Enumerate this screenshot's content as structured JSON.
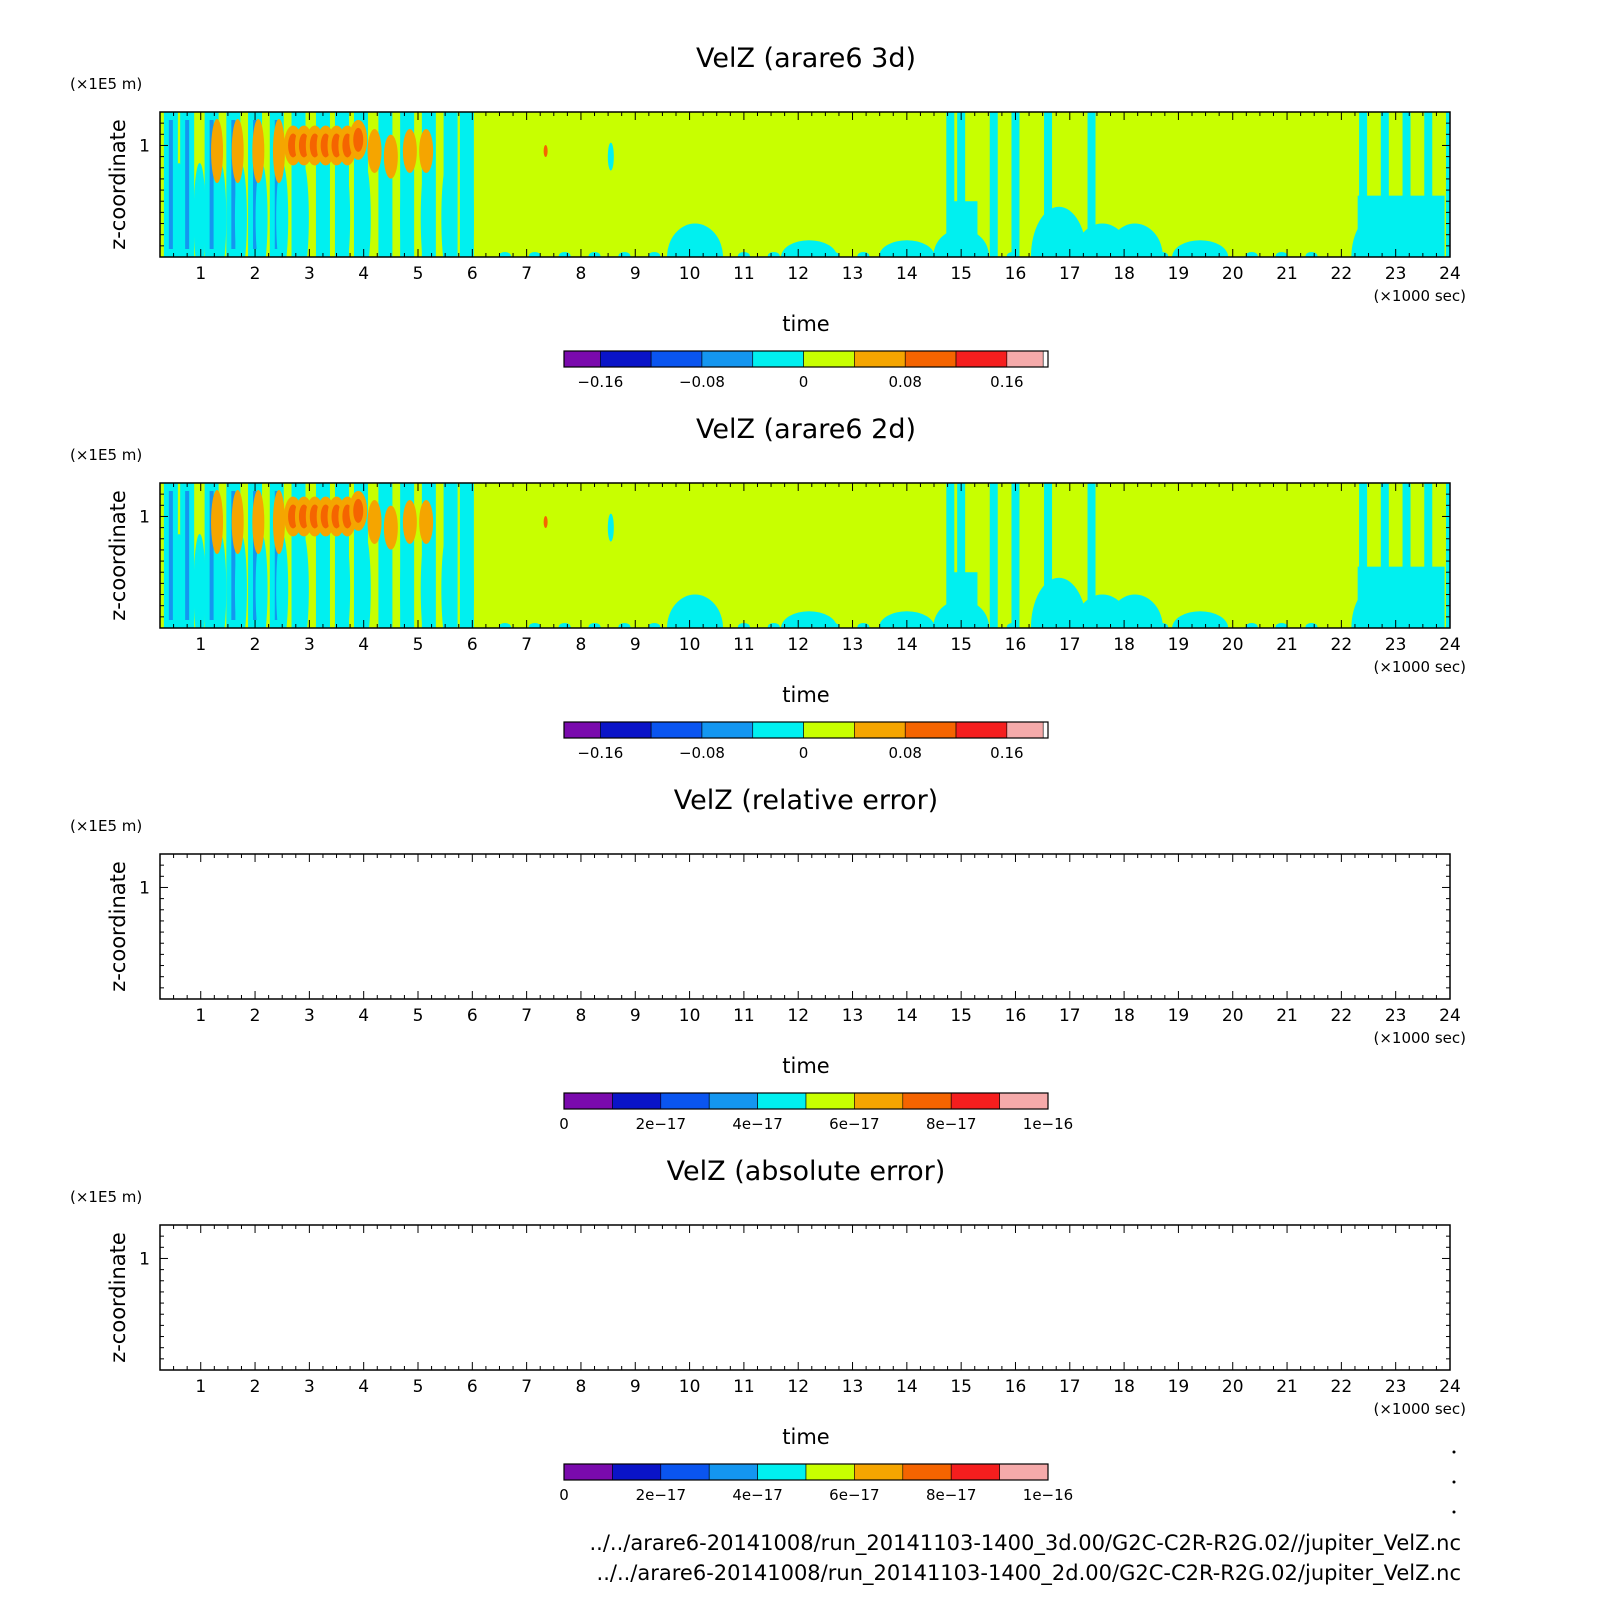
{
  "colors": {
    "palette": [
      "#7a0aad",
      "#0a14c8",
      "#0a55f0",
      "#1496f0",
      "#00f0f0",
      "#c8ff00",
      "#f5a500",
      "#f56400",
      "#f51e1e",
      "#f5aaaa"
    ],
    "background_field": "#c8ff00",
    "negative_field": "#00f0f0",
    "positive_field": "#f5a500",
    "strong_positive_field": "#f56400"
  },
  "footer": {
    "line1": "../../arare6-20141008/run_20141103-1400_3d.00/G2C-C2R-R2G.02//jupiter_VelZ.nc",
    "line2": "../../arare6-20141008/run_20141103-1400_2d.00/G2C-C2R-R2G.02/jupiter_VelZ.nc"
  },
  "chart_data": [
    {
      "type": "heatmap",
      "title": "VelZ (arare6 3d)",
      "xlabel": "time",
      "x_unit": "(×1000 sec)",
      "ylabel": "z-coordinate",
      "y_unit": "(×1E5 m)",
      "xlim": [
        0.25,
        24
      ],
      "ylim": [
        0,
        1.3
      ],
      "x_ticks": [
        "1",
        "2",
        "3",
        "4",
        "5",
        "6",
        "7",
        "8",
        "9",
        "10",
        "11",
        "12",
        "13",
        "14",
        "15",
        "16",
        "17",
        "18",
        "19",
        "20",
        "21",
        "22",
        "23",
        "24"
      ],
      "y_ticks": [
        "1"
      ],
      "colorbar": {
        "levels": [
          -0.2,
          -0.16,
          -0.12,
          -0.08,
          -0.04,
          0,
          0.04,
          0.08,
          0.12,
          0.16,
          0.2
        ],
        "labels": [
          "-0.16",
          "-0.08",
          "0",
          "0.08",
          "0.16"
        ],
        "label_values": [
          -0.16,
          -0.08,
          0,
          0.08,
          0.16
        ]
      },
      "filled": true,
      "field": {
        "blue_columns": [
          0.45,
          0.75,
          1.2,
          1.6,
          2.0,
          2.4,
          2.8,
          3.25,
          3.6,
          3.95,
          4.4,
          4.8,
          5.2,
          5.6,
          5.9
        ],
        "red_blobs": [
          [
            2.7,
            1.0
          ],
          [
            2.9,
            1.0
          ],
          [
            3.1,
            1.0
          ],
          [
            3.3,
            1.0
          ],
          [
            3.5,
            1.0
          ],
          [
            3.7,
            1.0
          ],
          [
            3.9,
            1.05
          ]
        ],
        "orange_blobs": [
          [
            4.2,
            0.95
          ],
          [
            4.5,
            0.9
          ],
          [
            4.85,
            0.95
          ],
          [
            5.15,
            0.95
          ]
        ],
        "cyan_patches": [
          [
            10.1,
            0.3
          ],
          [
            12.2,
            0.15
          ],
          [
            14.0,
            0.15
          ],
          [
            15.0,
            0.25
          ],
          [
            16.8,
            0.45
          ],
          [
            17.6,
            0.3
          ],
          [
            18.2,
            0.3
          ],
          [
            19.4,
            0.15
          ],
          [
            22.7,
            0.4
          ]
        ],
        "late_columns": [
          14.8,
          15.0,
          15.6,
          16.0,
          16.6,
          17.4,
          22.4,
          22.8,
          23.2,
          23.6,
          24.0
        ]
      }
    },
    {
      "type": "heatmap",
      "title": "VelZ (arare6 2d)",
      "xlabel": "time",
      "x_unit": "(×1000 sec)",
      "ylabel": "z-coordinate",
      "y_unit": "(×1E5 m)",
      "xlim": [
        0.25,
        24
      ],
      "ylim": [
        0,
        1.3
      ],
      "x_ticks": [
        "1",
        "2",
        "3",
        "4",
        "5",
        "6",
        "7",
        "8",
        "9",
        "10",
        "11",
        "12",
        "13",
        "14",
        "15",
        "16",
        "17",
        "18",
        "19",
        "20",
        "21",
        "22",
        "23",
        "24"
      ],
      "y_ticks": [
        "1"
      ],
      "colorbar": {
        "levels": [
          -0.2,
          -0.16,
          -0.12,
          -0.08,
          -0.04,
          0,
          0.04,
          0.08,
          0.12,
          0.16,
          0.2
        ],
        "labels": [
          "-0.16",
          "-0.08",
          "0",
          "0.08",
          "0.16"
        ],
        "label_values": [
          -0.16,
          -0.08,
          0,
          0.08,
          0.16
        ]
      },
      "filled": true,
      "field": {
        "blue_columns": [
          0.45,
          0.75,
          1.2,
          1.6,
          2.0,
          2.4,
          2.8,
          3.25,
          3.6,
          3.95,
          4.4,
          4.8,
          5.2,
          5.6,
          5.9
        ],
        "red_blobs": [
          [
            2.7,
            1.0
          ],
          [
            2.9,
            1.0
          ],
          [
            3.1,
            1.0
          ],
          [
            3.3,
            1.0
          ],
          [
            3.5,
            1.0
          ],
          [
            3.7,
            1.0
          ],
          [
            3.9,
            1.05
          ]
        ],
        "orange_blobs": [
          [
            4.2,
            0.95
          ],
          [
            4.5,
            0.9
          ],
          [
            4.85,
            0.95
          ],
          [
            5.15,
            0.95
          ]
        ],
        "cyan_patches": [
          [
            10.1,
            0.3
          ],
          [
            12.2,
            0.15
          ],
          [
            14.0,
            0.15
          ],
          [
            15.0,
            0.25
          ],
          [
            16.8,
            0.45
          ],
          [
            17.6,
            0.3
          ],
          [
            18.2,
            0.3
          ],
          [
            19.4,
            0.15
          ],
          [
            22.7,
            0.4
          ]
        ],
        "late_columns": [
          14.8,
          15.0,
          15.6,
          16.0,
          16.6,
          17.4,
          22.4,
          22.8,
          23.2,
          23.6,
          24.0
        ]
      }
    },
    {
      "type": "heatmap",
      "title": "VelZ (relative error)",
      "xlabel": "time",
      "x_unit": "(×1000 sec)",
      "ylabel": "z-coordinate",
      "y_unit": "(×1E5 m)",
      "xlim": [
        0.25,
        24
      ],
      "ylim": [
        0,
        1.3
      ],
      "x_ticks": [
        "1",
        "2",
        "3",
        "4",
        "5",
        "6",
        "7",
        "8",
        "9",
        "10",
        "11",
        "12",
        "13",
        "14",
        "15",
        "16",
        "17",
        "18",
        "19",
        "20",
        "21",
        "22",
        "23",
        "24"
      ],
      "y_ticks": [
        "1"
      ],
      "colorbar": {
        "levels": [
          0,
          1e-17,
          2e-17,
          3e-17,
          4e-17,
          5e-17,
          6e-17,
          7e-17,
          8e-17,
          9e-17,
          1e-16
        ],
        "labels": [
          "0",
          "2e-17",
          "4e-17",
          "6e-17",
          "8e-17",
          "1e-16"
        ],
        "label_values": [
          0,
          2e-17,
          4e-17,
          6e-17,
          8e-17,
          1e-16
        ]
      },
      "filled": false
    },
    {
      "type": "heatmap",
      "title": "VelZ (absolute error)",
      "xlabel": "time",
      "x_unit": "(×1000 sec)",
      "ylabel": "z-coordinate",
      "y_unit": "(×1E5 m)",
      "xlim": [
        0.25,
        24
      ],
      "ylim": [
        0,
        1.3
      ],
      "x_ticks": [
        "1",
        "2",
        "3",
        "4",
        "5",
        "6",
        "7",
        "8",
        "9",
        "10",
        "11",
        "12",
        "13",
        "14",
        "15",
        "16",
        "17",
        "18",
        "19",
        "20",
        "21",
        "22",
        "23",
        "24"
      ],
      "y_ticks": [
        "1"
      ],
      "colorbar": {
        "levels": [
          0,
          1e-17,
          2e-17,
          3e-17,
          4e-17,
          5e-17,
          6e-17,
          7e-17,
          8e-17,
          9e-17,
          1e-16
        ],
        "labels": [
          "0",
          "2e-17",
          "4e-17",
          "6e-17",
          "8e-17",
          "1e-16"
        ],
        "label_values": [
          0,
          2e-17,
          4e-17,
          6e-17,
          8e-17,
          1e-16
        ]
      },
      "filled": false
    }
  ]
}
